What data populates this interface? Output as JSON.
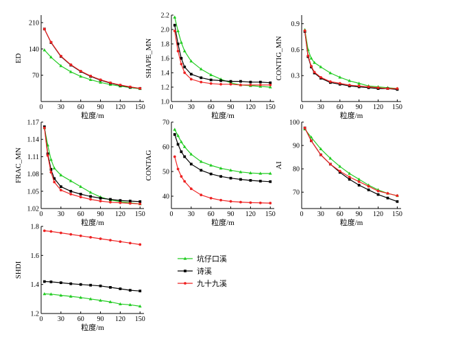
{
  "chart_data": [
    {
      "type": "line",
      "ylabel": "ED",
      "xlabel": "粒度/m",
      "xlim": [
        0,
        156
      ],
      "ylim": [
        0,
        230
      ],
      "xticks": [
        0,
        30,
        60,
        90,
        120,
        150
      ],
      "yticks": [
        70,
        140,
        210
      ],
      "series": [
        {
          "name": "坑仔口溪",
          "x": [
            5,
            15,
            30,
            45,
            60,
            75,
            90,
            105,
            120,
            135,
            150
          ],
          "values": [
            137,
            118,
            95,
            79,
            67,
            58,
            51,
            45,
            41,
            37,
            34
          ]
        },
        {
          "name": "诗溪",
          "x": [
            5,
            15,
            30,
            45,
            60,
            75,
            90,
            105,
            120,
            135,
            150
          ],
          "values": [
            193,
            157,
            120,
            97,
            80,
            67,
            57,
            49,
            43,
            38,
            35
          ]
        },
        {
          "name": "九十九溪",
          "x": [
            5,
            15,
            30,
            45,
            60,
            75,
            90,
            105,
            120,
            135,
            150
          ],
          "values": [
            193,
            158,
            121,
            98,
            81,
            68,
            58,
            50,
            44,
            39,
            35
          ]
        }
      ]
    },
    {
      "type": "line",
      "ylabel": "SHAPE_MN",
      "xlabel": "粒度/m",
      "xlim": [
        0,
        156
      ],
      "ylim": [
        1.0,
        2.2
      ],
      "xticks": [
        0,
        30,
        60,
        90,
        120,
        150
      ],
      "yticks": [
        1.0,
        1.2,
        1.4,
        1.6,
        1.8,
        2.0,
        2.2
      ],
      "series": [
        {
          "name": "坑仔口溪",
          "x": [
            5,
            10,
            15,
            20,
            30,
            45,
            60,
            75,
            90,
            105,
            120,
            135,
            150
          ],
          "values": [
            2.17,
            1.98,
            1.82,
            1.7,
            1.56,
            1.45,
            1.37,
            1.31,
            1.26,
            1.23,
            1.22,
            1.21,
            1.2
          ]
        },
        {
          "name": "诗溪",
          "x": [
            5,
            10,
            15,
            20,
            30,
            45,
            60,
            75,
            90,
            105,
            120,
            135,
            150
          ],
          "values": [
            2.06,
            1.8,
            1.6,
            1.48,
            1.38,
            1.33,
            1.3,
            1.29,
            1.28,
            1.28,
            1.27,
            1.27,
            1.26
          ]
        },
        {
          "name": "九十九溪",
          "x": [
            5,
            10,
            15,
            20,
            30,
            45,
            60,
            75,
            90,
            105,
            120,
            135,
            150
          ],
          "values": [
            1.98,
            1.7,
            1.52,
            1.4,
            1.31,
            1.27,
            1.25,
            1.24,
            1.24,
            1.23,
            1.23,
            1.23,
            1.23
          ]
        }
      ]
    },
    {
      "type": "line",
      "ylabel": "CONTIG_MN",
      "xlabel": "粒度/m",
      "xlim": [
        0,
        156
      ],
      "ylim": [
        0,
        1.0
      ],
      "xticks": [
        0,
        30,
        60,
        90,
        120,
        150
      ],
      "yticks": [
        0.3,
        0.6,
        0.9
      ],
      "series": [
        {
          "name": "坑仔口溪",
          "x": [
            5,
            10,
            15,
            20,
            30,
            45,
            60,
            75,
            90,
            105,
            120,
            135,
            150
          ],
          "values": [
            0.83,
            0.6,
            0.5,
            0.45,
            0.4,
            0.33,
            0.28,
            0.24,
            0.21,
            0.18,
            0.17,
            0.16,
            0.15
          ]
        },
        {
          "name": "诗溪",
          "x": [
            5,
            10,
            15,
            20,
            30,
            45,
            60,
            75,
            90,
            105,
            120,
            135,
            150
          ],
          "values": [
            0.81,
            0.52,
            0.4,
            0.33,
            0.27,
            0.22,
            0.2,
            0.18,
            0.17,
            0.16,
            0.15,
            0.15,
            0.14
          ]
        },
        {
          "name": "九十九溪",
          "x": [
            5,
            10,
            15,
            20,
            30,
            45,
            60,
            75,
            90,
            105,
            120,
            135,
            150
          ],
          "values": [
            0.82,
            0.53,
            0.41,
            0.34,
            0.28,
            0.23,
            0.21,
            0.19,
            0.18,
            0.17,
            0.16,
            0.15,
            0.15
          ]
        }
      ]
    },
    {
      "type": "line",
      "ylabel": "FRAC_MN",
      "xlabel": "粒度/m",
      "xlim": [
        0,
        156
      ],
      "ylim": [
        1.02,
        1.17
      ],
      "xticks": [
        0,
        30,
        60,
        90,
        120,
        150
      ],
      "yticks": [
        1.02,
        1.05,
        1.08,
        1.11,
        1.14,
        1.17
      ],
      "series": [
        {
          "name": "坑仔口溪",
          "x": [
            5,
            10,
            15,
            20,
            30,
            45,
            60,
            75,
            90,
            105,
            120,
            135,
            150
          ],
          "values": [
            1.16,
            1.13,
            1.105,
            1.09,
            1.078,
            1.068,
            1.058,
            1.048,
            1.04,
            1.035,
            1.032,
            1.03,
            1.028
          ]
        },
        {
          "name": "诗溪",
          "x": [
            5,
            10,
            15,
            20,
            30,
            45,
            60,
            75,
            90,
            105,
            120,
            135,
            150
          ],
          "values": [
            1.162,
            1.115,
            1.088,
            1.072,
            1.058,
            1.05,
            1.045,
            1.041,
            1.038,
            1.036,
            1.034,
            1.033,
            1.032
          ]
        },
        {
          "name": "九十九溪",
          "x": [
            5,
            10,
            15,
            20,
            30,
            45,
            60,
            75,
            90,
            105,
            120,
            135,
            150
          ],
          "values": [
            1.16,
            1.112,
            1.083,
            1.066,
            1.052,
            1.045,
            1.04,
            1.036,
            1.033,
            1.031,
            1.03,
            1.029,
            1.028
          ]
        }
      ]
    },
    {
      "type": "line",
      "ylabel": "CONTAG",
      "xlabel": "粒度/m",
      "xlim": [
        0,
        156
      ],
      "ylim": [
        35,
        70
      ],
      "xticks": [
        0,
        30,
        60,
        90,
        120,
        150
      ],
      "yticks": [
        40,
        50,
        60,
        70
      ],
      "series": [
        {
          "name": "坑仔口溪",
          "x": [
            5,
            10,
            15,
            20,
            30,
            45,
            60,
            75,
            90,
            105,
            120,
            135,
            150
          ],
          "values": [
            67.0,
            64.5,
            62.0,
            60.0,
            57.0,
            54.0,
            52.5,
            51.3,
            50.5,
            49.8,
            49.4,
            49.2,
            49.2
          ]
        },
        {
          "name": "诗溪",
          "x": [
            5,
            10,
            15,
            20,
            30,
            45,
            60,
            75,
            90,
            105,
            120,
            135,
            150
          ],
          "values": [
            65.0,
            61.0,
            58.0,
            56.0,
            53.0,
            50.5,
            49.0,
            48.0,
            47.3,
            46.8,
            46.4,
            46.1,
            45.9
          ]
        },
        {
          "name": "九十九溪",
          "x": [
            5,
            10,
            15,
            20,
            30,
            45,
            60,
            75,
            90,
            105,
            120,
            135,
            150
          ],
          "values": [
            56.0,
            51.0,
            48.0,
            46.0,
            43.0,
            40.5,
            39.2,
            38.4,
            37.9,
            37.6,
            37.4,
            37.3,
            37.2
          ]
        }
      ]
    },
    {
      "type": "line",
      "ylabel": "AI",
      "xlabel": "粒度/m",
      "xlim": [
        0,
        156
      ],
      "ylim": [
        63,
        100
      ],
      "xticks": [
        0,
        30,
        60,
        90,
        120,
        150
      ],
      "yticks": [
        70,
        80,
        90,
        100
      ],
      "series": [
        {
          "name": "坑仔口溪",
          "x": [
            5,
            15,
            30,
            45,
            60,
            75,
            90,
            105,
            120,
            135,
            150
          ],
          "values": [
            97.0,
            93.5,
            88.5,
            84.5,
            81.0,
            78.0,
            75.5,
            73.0,
            71.0,
            69.5,
            68.5
          ]
        },
        {
          "name": "诗溪",
          "x": [
            5,
            15,
            30,
            45,
            60,
            75,
            90,
            105,
            120,
            135,
            150
          ],
          "values": [
            97.5,
            92.0,
            86.0,
            82.0,
            78.5,
            75.5,
            73.0,
            71.0,
            69.0,
            67.5,
            66.0
          ]
        },
        {
          "name": "九十九溪",
          "x": [
            5,
            15,
            30,
            45,
            60,
            75,
            90,
            105,
            120,
            135,
            150
          ],
          "values": [
            97.5,
            92.0,
            86.0,
            82.0,
            79.0,
            76.5,
            74.5,
            72.5,
            70.5,
            69.5,
            68.5
          ]
        }
      ]
    },
    {
      "type": "line",
      "ylabel": "SHDI",
      "xlabel": "粒度/m",
      "xlim": [
        0,
        156
      ],
      "ylim": [
        1.2,
        1.8
      ],
      "xticks": [
        0,
        30,
        60,
        90,
        120,
        150
      ],
      "yticks": [
        1.2,
        1.4,
        1.6,
        1.8
      ],
      "series": [
        {
          "name": "坑仔口溪",
          "x": [
            5,
            15,
            30,
            45,
            60,
            75,
            90,
            105,
            120,
            135,
            150
          ],
          "values": [
            1.335,
            1.333,
            1.325,
            1.318,
            1.31,
            1.3,
            1.29,
            1.28,
            1.265,
            1.26,
            1.25
          ]
        },
        {
          "name": "诗溪",
          "x": [
            5,
            15,
            30,
            45,
            60,
            75,
            90,
            105,
            120,
            135,
            150
          ],
          "values": [
            1.42,
            1.418,
            1.412,
            1.405,
            1.4,
            1.395,
            1.39,
            1.38,
            1.37,
            1.36,
            1.355
          ]
        },
        {
          "name": "九十九溪",
          "x": [
            5,
            15,
            30,
            45,
            60,
            75,
            90,
            105,
            120,
            135,
            150
          ],
          "values": [
            1.77,
            1.765,
            1.755,
            1.745,
            1.735,
            1.725,
            1.715,
            1.705,
            1.695,
            1.685,
            1.675
          ]
        }
      ]
    }
  ],
  "legend": [
    {
      "label": "坑仔口溪",
      "color": "#22cc22",
      "marker": "triangle"
    },
    {
      "label": "诗溪",
      "color": "#000000",
      "marker": "square"
    },
    {
      "label": "九十九溪",
      "color": "#ee2222",
      "marker": "circle"
    }
  ]
}
